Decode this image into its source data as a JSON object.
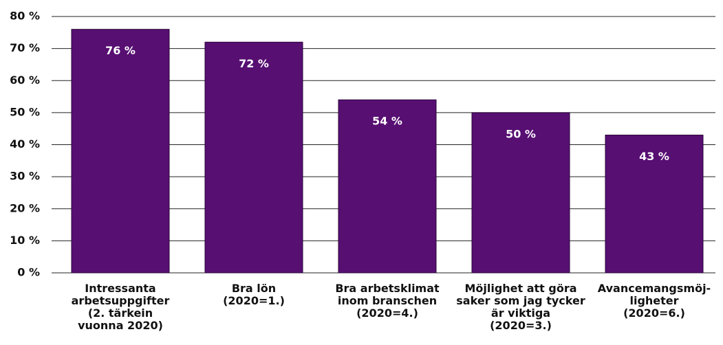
{
  "chart_data": {
    "type": "bar",
    "categories": [
      "Intressanta\narbetsuppgifter\n(2. tärkein\nvuonna 2020)",
      "Bra lön\n(2020=1.)",
      "Bra arbetsklimat\ninom branschen\n(2020=4.)",
      "Möjlighet att göra\nsaker som jag tycker\när viktiga\n(2020=3.)",
      "Avancemangsmöj-\nligheter\n(2020=6.)"
    ],
    "values": [
      76,
      72,
      54,
      50,
      43
    ],
    "value_labels": [
      "76 %",
      "72 %",
      "54 %",
      "50 %",
      "43 %"
    ],
    "color": "#570f72",
    "ylim": [
      0,
      80
    ],
    "yticks": [
      {
        "value": 0,
        "label": "0 %"
      },
      {
        "value": 10,
        "label": "10 %"
      },
      {
        "value": 20,
        "label": "20 %"
      },
      {
        "value": 30,
        "label": "30 %"
      },
      {
        "value": 40,
        "label": "40 %"
      },
      {
        "value": 50,
        "label": "50 %"
      },
      {
        "value": 60,
        "label": "60 %"
      },
      {
        "value": 70,
        "label": "70 %"
      },
      {
        "value": 80,
        "label": "80 %"
      }
    ],
    "grid": true
  }
}
